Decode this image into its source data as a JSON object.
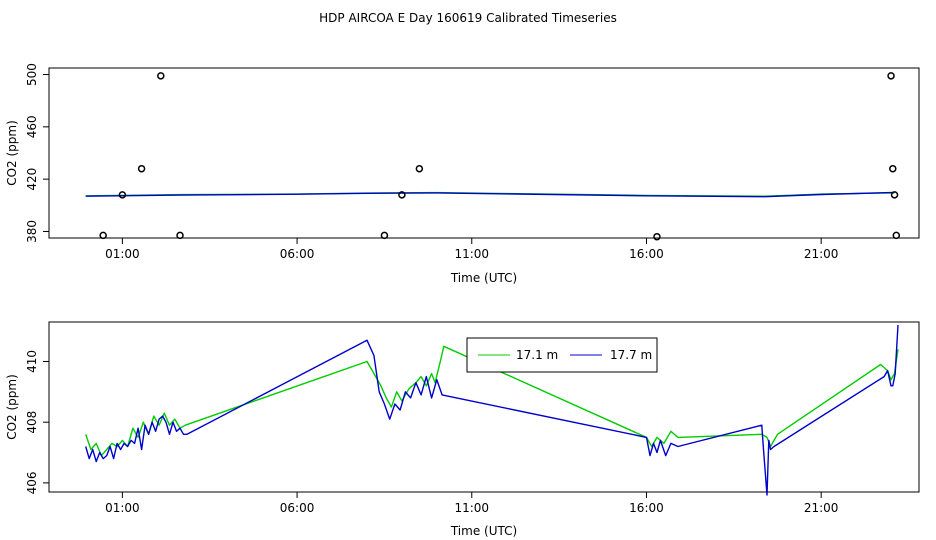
{
  "title": "HDP AIRCOA E  Day 160619  Calibrated Timeseries",
  "colors": {
    "series_a": "#00cc00",
    "series_b": "#0000cc",
    "axis": "#000000"
  },
  "chart_data": [
    {
      "type": "scatter",
      "xlabel": "Time (UTC)",
      "ylabel": "CO2 (ppm)",
      "xlim": [
        -1.1,
        23.8
      ],
      "ylim": [
        375,
        505
      ],
      "xticks": [
        1,
        6,
        11,
        16,
        21
      ],
      "xtick_labels": [
        "01:00",
        "06:00",
        "11:00",
        "16:00",
        "21:00"
      ],
      "yticks": [
        380,
        420,
        460,
        500
      ],
      "ytick_labels": [
        "380",
        "420",
        "460",
        "500"
      ],
      "points": [
        {
          "x": 0.45,
          "y": 377
        },
        {
          "x": 1.0,
          "y": 408
        },
        {
          "x": 1.55,
          "y": 428
        },
        {
          "x": 2.1,
          "y": 499
        },
        {
          "x": 2.65,
          "y": 377
        },
        {
          "x": 8.5,
          "y": 377
        },
        {
          "x": 9.0,
          "y": 408
        },
        {
          "x": 9.5,
          "y": 428
        },
        {
          "x": 16.3,
          "y": 376
        },
        {
          "x": 23.0,
          "y": 499
        },
        {
          "x": 23.05,
          "y": 428
        },
        {
          "x": 23.1,
          "y": 408
        },
        {
          "x": 23.15,
          "y": 377
        }
      ],
      "series": [
        {
          "color": "#00cc00",
          "x": [
            -0.05,
            2.7,
            6.0,
            8.0,
            10.0,
            16.0,
            19.4,
            21.0,
            23.1
          ],
          "y": [
            407.3,
            408.2,
            408.6,
            409.3,
            409.7,
            407.6,
            407.0,
            408.6,
            409.5
          ]
        },
        {
          "color": "#0000cc",
          "x": [
            -0.05,
            2.7,
            6.0,
            8.0,
            10.0,
            16.0,
            19.4,
            21.0,
            23.1
          ],
          "y": [
            407.0,
            407.8,
            408.5,
            409.2,
            409.5,
            407.3,
            406.6,
            408.3,
            409.9
          ]
        }
      ]
    },
    {
      "type": "line",
      "xlabel": "Time (UTC)",
      "ylabel": "CO2 (ppm)",
      "xlim": [
        -1.1,
        23.8
      ],
      "ylim": [
        405.7,
        411.3
      ],
      "xticks": [
        1,
        6,
        11,
        16,
        21
      ],
      "xtick_labels": [
        "01:00",
        "06:00",
        "11:00",
        "16:00",
        "21:00"
      ],
      "yticks": [
        406,
        408,
        410
      ],
      "ytick_labels": [
        "406",
        "408",
        "410"
      ],
      "legend": {
        "position": "top-center",
        "entries": [
          "17.1 m",
          "17.7 m"
        ]
      },
      "series": [
        {
          "name": "17.1 m",
          "color": "#00cc00",
          "x": [
            -0.05,
            0.1,
            0.25,
            0.4,
            0.55,
            0.7,
            0.85,
            1.0,
            1.15,
            1.3,
            1.45,
            1.6,
            1.75,
            1.9,
            2.05,
            2.2,
            2.35,
            2.5,
            2.65,
            2.8,
            8.0,
            8.25,
            8.4,
            8.55,
            8.7,
            8.85,
            9.0,
            9.2,
            9.4,
            9.55,
            9.7,
            9.85,
            9.95,
            10.1,
            10.2,
            16.0,
            16.15,
            16.3,
            16.5,
            16.7,
            16.9,
            19.3,
            19.45,
            19.55,
            19.65,
            19.75,
            22.7,
            22.9,
            23.0,
            23.1,
            23.2
          ],
          "y": [
            407.6,
            407.1,
            407.3,
            406.9,
            407.1,
            407.3,
            407.2,
            407.4,
            407.2,
            407.8,
            407.5,
            408.0,
            407.6,
            408.2,
            407.9,
            408.3,
            407.9,
            408.1,
            407.8,
            407.9,
            410.0,
            409.5,
            409.2,
            408.8,
            408.5,
            409.0,
            408.7,
            409.1,
            409.3,
            409.5,
            409.2,
            409.6,
            409.3,
            410.0,
            410.5,
            407.5,
            407.2,
            407.5,
            407.3,
            407.7,
            407.5,
            407.6,
            407.5,
            407.2,
            407.4,
            407.6,
            409.9,
            409.7,
            409.4,
            409.6,
            410.4
          ]
        },
        {
          "name": "17.7 m",
          "color": "#0000cc",
          "x": [
            -0.05,
            0.05,
            0.15,
            0.25,
            0.35,
            0.45,
            0.55,
            0.65,
            0.75,
            0.85,
            0.95,
            1.05,
            1.15,
            1.25,
            1.35,
            1.45,
            1.55,
            1.65,
            1.75,
            1.85,
            1.95,
            2.05,
            2.15,
            2.25,
            2.35,
            2.45,
            2.55,
            2.65,
            2.75,
            2.85,
            8.0,
            8.2,
            8.35,
            8.5,
            8.65,
            8.8,
            8.95,
            9.1,
            9.25,
            9.4,
            9.55,
            9.7,
            9.85,
            10.0,
            10.15,
            16.0,
            16.1,
            16.2,
            16.3,
            16.4,
            16.55,
            16.7,
            16.9,
            19.3,
            19.35,
            19.45,
            19.5,
            19.55,
            19.65,
            22.8,
            22.9,
            23.0,
            23.05,
            23.12,
            23.2
          ],
          "y": [
            407.2,
            406.8,
            407.1,
            406.7,
            407.0,
            406.8,
            406.9,
            407.2,
            406.8,
            407.3,
            407.1,
            407.3,
            407.2,
            407.4,
            407.3,
            407.8,
            407.1,
            407.9,
            407.6,
            408.0,
            407.7,
            408.1,
            408.2,
            408.0,
            407.6,
            408.0,
            407.7,
            407.8,
            407.6,
            407.6,
            410.7,
            410.2,
            409.0,
            408.6,
            408.1,
            408.6,
            408.4,
            409.0,
            408.8,
            409.3,
            408.9,
            409.5,
            408.8,
            409.4,
            408.9,
            407.5,
            406.9,
            407.3,
            407.0,
            407.4,
            406.9,
            407.3,
            407.2,
            407.9,
            407.1,
            405.6,
            407.4,
            407.1,
            407.2,
            409.5,
            409.7,
            409.2,
            409.2,
            409.6,
            411.2
          ]
        }
      ]
    }
  ]
}
